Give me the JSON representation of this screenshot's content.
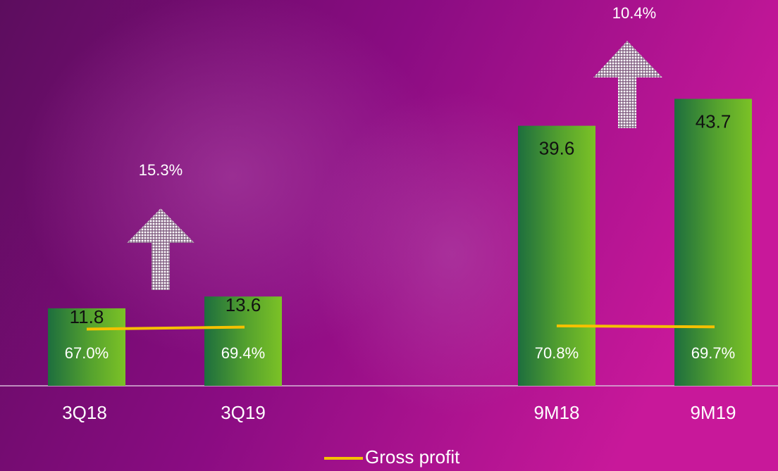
{
  "chart_data": {
    "type": "bar",
    "categories": [
      "3Q18",
      "3Q19",
      "9M18",
      "9M19"
    ],
    "series": [
      {
        "values": [
          11.8,
          13.6,
          39.6,
          43.7
        ],
        "color": "#6fb82a"
      },
      {
        "name": "Gross profit",
        "type": "line",
        "axis": "y2",
        "color": "#f5c000",
        "values": [
          67.0,
          69.4,
          70.8,
          69.7
        ],
        "value_labels": [
          "67.0%",
          "69.4%",
          "70.8%",
          "69.7%"
        ]
      }
    ],
    "annotations": [
      "15.3%",
      "10.4%"
    ],
    "ylim": [
      0,
      58
    ],
    "y2lim": [
      0,
      450
    ],
    "grid": false,
    "legend": "bottom"
  }
}
